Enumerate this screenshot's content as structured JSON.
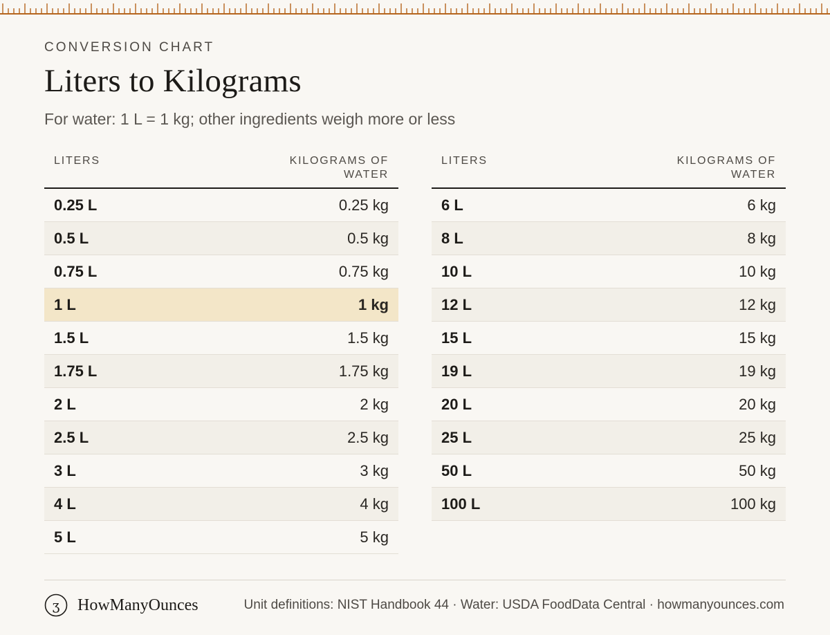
{
  "header": {
    "eyebrow": "CONVERSION CHART",
    "title": "Liters to Kilograms",
    "subtitle": "For water: 1 L = 1 kg; other ingredients weigh more or less"
  },
  "table_left": {
    "col1": "LITERS",
    "col2_line1": "KILOGRAMS OF",
    "col2_line2": "WATER",
    "rows": [
      {
        "liters": "0.25 L",
        "kg": "0.25 kg"
      },
      {
        "liters": "0.5 L",
        "kg": "0.5 kg"
      },
      {
        "liters": "0.75 L",
        "kg": "0.75 kg"
      },
      {
        "liters": "1 L",
        "kg": "1 kg"
      },
      {
        "liters": "1.5 L",
        "kg": "1.5 kg"
      },
      {
        "liters": "1.75 L",
        "kg": "1.75 kg"
      },
      {
        "liters": "2 L",
        "kg": "2 kg"
      },
      {
        "liters": "2.5 L",
        "kg": "2.5 kg"
      },
      {
        "liters": "3 L",
        "kg": "3 kg"
      },
      {
        "liters": "4 L",
        "kg": "4 kg"
      },
      {
        "liters": "5 L",
        "kg": "5 kg"
      }
    ]
  },
  "table_right": {
    "col1": "LITERS",
    "col2_line1": "KILOGRAMS OF",
    "col2_line2": "WATER",
    "rows": [
      {
        "liters": "6 L",
        "kg": "6 kg"
      },
      {
        "liters": "8 L",
        "kg": "8 kg"
      },
      {
        "liters": "10 L",
        "kg": "10 kg"
      },
      {
        "liters": "12 L",
        "kg": "12 kg"
      },
      {
        "liters": "15 L",
        "kg": "15 kg"
      },
      {
        "liters": "19 L",
        "kg": "19 kg"
      },
      {
        "liters": "20 L",
        "kg": "20 kg"
      },
      {
        "liters": "25 L",
        "kg": "25 kg"
      },
      {
        "liters": "50 L",
        "kg": "50 kg"
      },
      {
        "liters": "100 L",
        "kg": "100 kg"
      }
    ]
  },
  "footer": {
    "brand_icon_glyph": "ʒ",
    "brand_name": "HowManyOunces",
    "sources": "Unit definitions: NIST Handbook 44 · Water: USDA FoodData Central · howmanyounces.com"
  },
  "colors": {
    "ruler": "#b5651d",
    "background": "#f9f7f3",
    "highlight_row": "#f3e6c8",
    "alt_row": "#f2efe8"
  }
}
